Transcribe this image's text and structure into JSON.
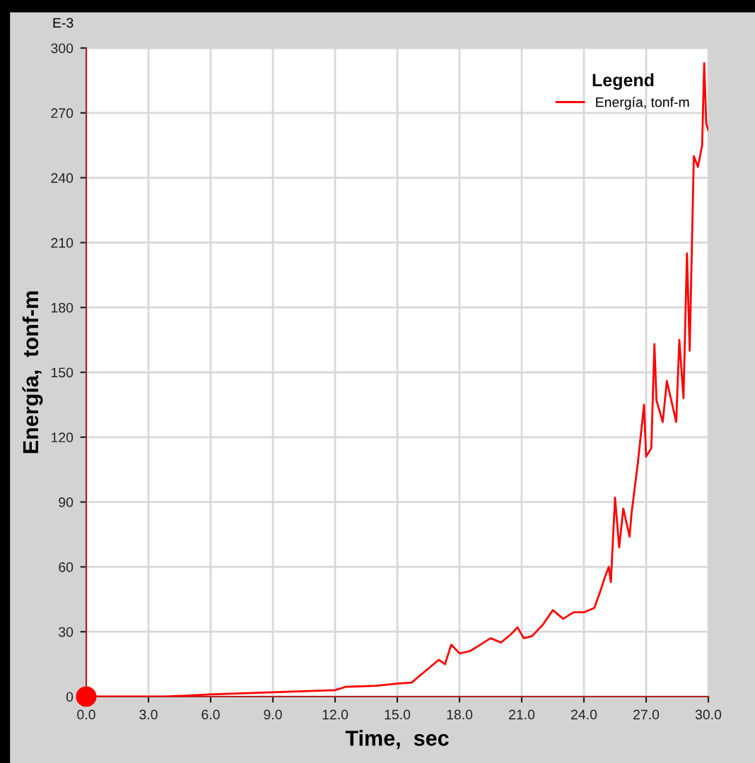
{
  "chart_data": {
    "type": "line",
    "xlabel": "Time,  sec",
    "ylabel": "Energía,  tonf-m",
    "legend_title": "Legend",
    "annotations": [
      "E-3"
    ],
    "series": [
      {
        "name": "Energía, tonf-m",
        "color": "#ff0000",
        "x": [
          0,
          3.8,
          6,
          9,
          12,
          12.5,
          14,
          15,
          15.7,
          16,
          16.5,
          17,
          17.3,
          17.6,
          18,
          18.5,
          19,
          19.5,
          20,
          20.5,
          20.8,
          21.1,
          21.5,
          22,
          22.5,
          23,
          23.5,
          24,
          24.5,
          24.8,
          25,
          25.2,
          25.3,
          25.5,
          25.7,
          25.9,
          26.2,
          26.3,
          26.6,
          26.9,
          27.0,
          27.25,
          27.4,
          27.5,
          27.8,
          28.0,
          28.45,
          28.6,
          28.8,
          28.97,
          29.1,
          29.3,
          29.5,
          29.7,
          29.8,
          29.9,
          30
        ],
        "values": [
          0,
          0,
          1,
          2,
          3,
          4.5,
          5,
          6,
          6.5,
          9,
          13,
          17,
          15,
          24,
          20,
          21,
          24,
          27,
          25,
          29,
          32,
          27,
          28,
          33,
          40,
          36,
          39,
          39,
          41,
          49,
          55,
          60,
          53,
          92,
          69,
          87,
          74,
          85,
          108,
          135,
          111,
          115,
          163,
          137,
          127,
          146,
          127,
          165,
          138,
          205,
          160,
          250,
          245,
          255,
          293,
          265,
          262
        ]
      },
      {
        "type": "scatter",
        "color": "#ff0000",
        "x": [
          0
        ],
        "values": [
          0
        ],
        "marker": "circle"
      }
    ],
    "xlim": [
      0,
      30
    ],
    "ylim": [
      0,
      300
    ],
    "xticks": [
      {
        "value": 0,
        "label": "0.0"
      },
      {
        "value": 3,
        "label": "3.0"
      },
      {
        "value": 6,
        "label": "6.0"
      },
      {
        "value": 9,
        "label": "9.0"
      },
      {
        "value": 12,
        "label": "12.0"
      },
      {
        "value": 15,
        "label": "15.0"
      },
      {
        "value": 18,
        "label": "18.0"
      },
      {
        "value": 21,
        "label": "21.0"
      },
      {
        "value": 24,
        "label": "24.0"
      },
      {
        "value": 27,
        "label": "27.0"
      },
      {
        "value": 30,
        "label": "30.0"
      }
    ],
    "yticks": [
      0,
      30,
      60,
      90,
      120,
      150,
      180,
      210,
      240,
      270,
      300
    ],
    "grid": true,
    "legend": "top right"
  }
}
